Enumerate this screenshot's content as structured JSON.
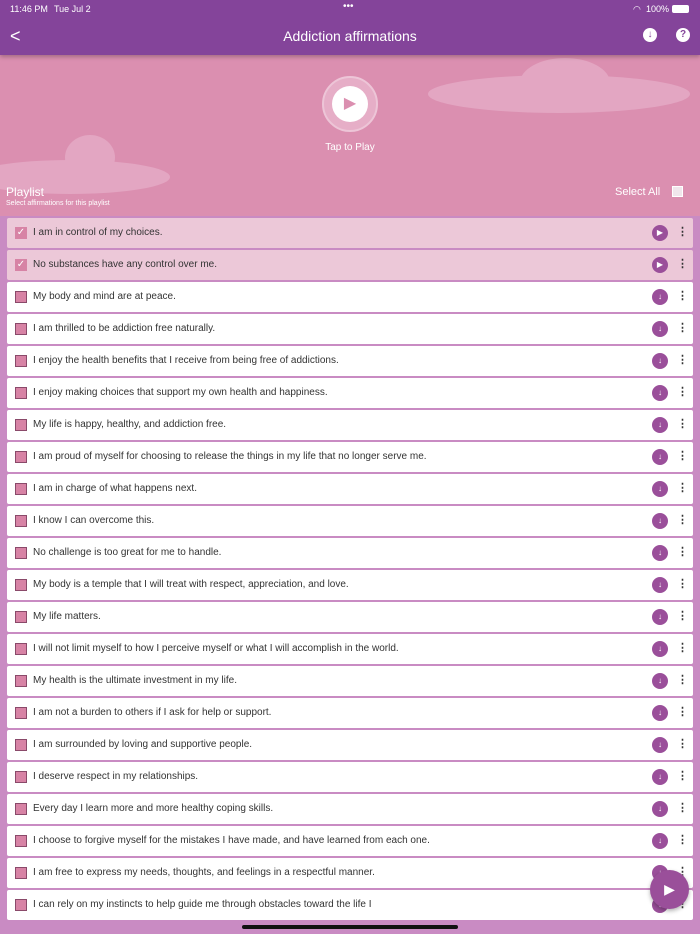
{
  "status": {
    "time": "11:46 PM",
    "date": "Tue Jul 2",
    "battery": "100%"
  },
  "header": {
    "title": "Addiction affirmations"
  },
  "player": {
    "tap_label": "Tap to Play"
  },
  "playlist": {
    "title": "Playlist",
    "subtitle": "Select affirmations for this playlist",
    "select_all": "Select All"
  },
  "items": [
    {
      "text": "I am in control of my choices.",
      "checked": true
    },
    {
      "text": "No substances have any control over me.",
      "checked": true
    },
    {
      "text": "My body and mind are at peace.",
      "checked": false
    },
    {
      "text": "I am thrilled to be addiction free naturally.",
      "checked": false
    },
    {
      "text": "I enjoy the health benefits that I receive from being free of addictions.",
      "checked": false
    },
    {
      "text": "I enjoy making choices that support my own health and happiness.",
      "checked": false
    },
    {
      "text": "My life is happy, healthy, and addiction free.",
      "checked": false
    },
    {
      "text": "I am proud of myself for choosing to release the things in my life that no longer serve me.",
      "checked": false
    },
    {
      "text": "I am in charge of what happens next.",
      "checked": false
    },
    {
      "text": "I know I can overcome this.",
      "checked": false
    },
    {
      "text": "No challenge is too great for me to handle.",
      "checked": false
    },
    {
      "text": "My body is a temple that I will treat with respect, appreciation, and love.",
      "checked": false
    },
    {
      "text": "My life matters.",
      "checked": false
    },
    {
      "text": "I will not limit myself to how I perceive myself or what I will accomplish in the world.",
      "checked": false
    },
    {
      "text": "My health is the ultimate investment in my life.",
      "checked": false
    },
    {
      "text": "I am not a burden to others if I ask for help or support.",
      "checked": false
    },
    {
      "text": "I am surrounded by loving and supportive people.",
      "checked": false
    },
    {
      "text": "I deserve respect in my relationships.",
      "checked": false
    },
    {
      "text": "Every day I learn more and more healthy coping skills.",
      "checked": false
    },
    {
      "text": "I choose to forgive myself for the mistakes I have made, and have learned from each one.",
      "checked": false
    },
    {
      "text": "I am free to express my needs, thoughts, and feelings in a respectful manner.",
      "checked": false
    },
    {
      "text": "I can rely on my instincts to help guide me through obstacles toward the life I",
      "checked": false
    }
  ],
  "colors": {
    "header": "#84449a",
    "background": "#db8fb0",
    "accent": "#9a4f9a"
  }
}
